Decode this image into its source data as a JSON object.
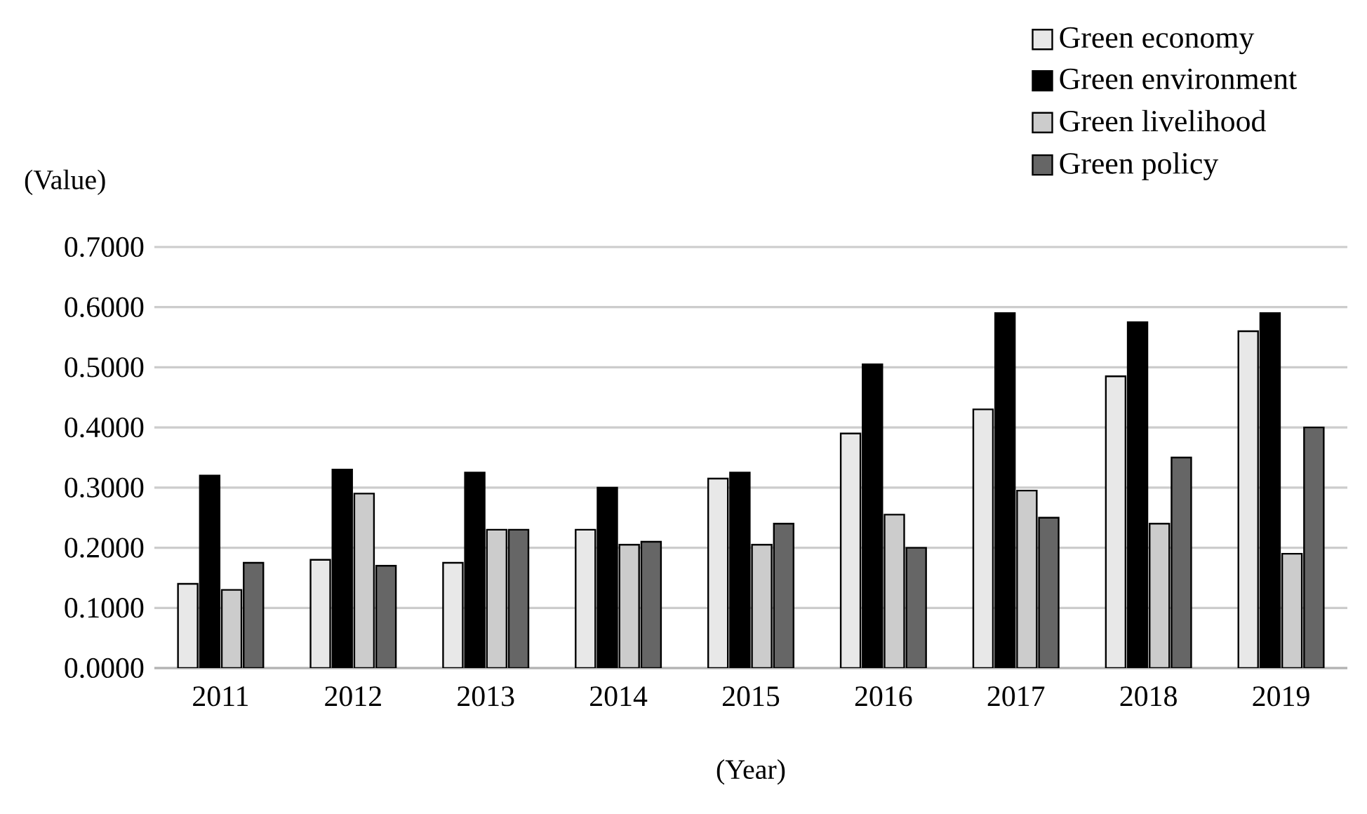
{
  "chart_data": {
    "type": "bar",
    "ylabel": "(Value)",
    "xlabel": "(Year)",
    "categories": [
      "2011",
      "2012",
      "2013",
      "2014",
      "2015",
      "2016",
      "2017",
      "2018",
      "2019"
    ],
    "series": [
      {
        "name": "Green economy",
        "color": "#e8e8e8",
        "values": [
          0.14,
          0.18,
          0.175,
          0.23,
          0.315,
          0.39,
          0.43,
          0.485,
          0.56
        ]
      },
      {
        "name": "Green environment",
        "color": "#000000",
        "values": [
          0.32,
          0.33,
          0.325,
          0.3,
          0.325,
          0.505,
          0.59,
          0.575,
          0.59
        ]
      },
      {
        "name": "Green livelihood",
        "color": "#cccccc",
        "values": [
          0.13,
          0.29,
          0.23,
          0.205,
          0.205,
          0.255,
          0.295,
          0.24,
          0.19
        ]
      },
      {
        "name": "Green policy",
        "color": "#666666",
        "values": [
          0.175,
          0.17,
          0.23,
          0.21,
          0.24,
          0.2,
          0.25,
          0.35,
          0.4
        ]
      }
    ],
    "ylim": [
      0,
      0.7
    ],
    "yticks": [
      {
        "value": 0,
        "label": "0.0000"
      },
      {
        "value": 0.1,
        "label": "0.1000"
      },
      {
        "value": 0.2,
        "label": "0.2000"
      },
      {
        "value": 0.3,
        "label": "0.3000"
      },
      {
        "value": 0.4,
        "label": "0.4000"
      },
      {
        "value": 0.5,
        "label": "0.5000"
      },
      {
        "value": 0.6,
        "label": "0.6000"
      },
      {
        "value": 0.7,
        "label": "0.7000"
      }
    ],
    "grid": "y",
    "legend": "top right"
  }
}
